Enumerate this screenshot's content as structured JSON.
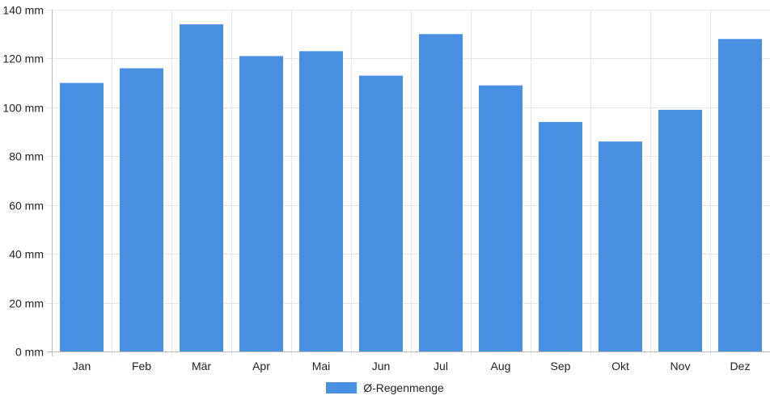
{
  "colors": {
    "bar": "#4a90e2",
    "grid": "#e6e6e6",
    "axis": "#bbbbbb"
  },
  "chart_data": {
    "type": "bar",
    "title": "",
    "xlabel": "",
    "ylabel": "",
    "unit": "mm",
    "categories": [
      "Jan",
      "Feb",
      "Mär",
      "Apr",
      "Mai",
      "Jun",
      "Jul",
      "Aug",
      "Sep",
      "Okt",
      "Nov",
      "Dez"
    ],
    "series": [
      {
        "name": "Ø-Regenmenge",
        "values": [
          110,
          116,
          134,
          121,
          123,
          113,
          130,
          109,
          94,
          86,
          99,
          128
        ]
      }
    ],
    "ylim": [
      0,
      140
    ],
    "yticks": [
      0,
      20,
      40,
      60,
      80,
      100,
      120,
      140
    ],
    "ytick_labels": [
      "0 mm",
      "20 mm",
      "40 mm",
      "60 mm",
      "80 mm",
      "100 mm",
      "120 mm",
      "140 mm"
    ],
    "grid": true,
    "legend_position": "bottom-center"
  }
}
